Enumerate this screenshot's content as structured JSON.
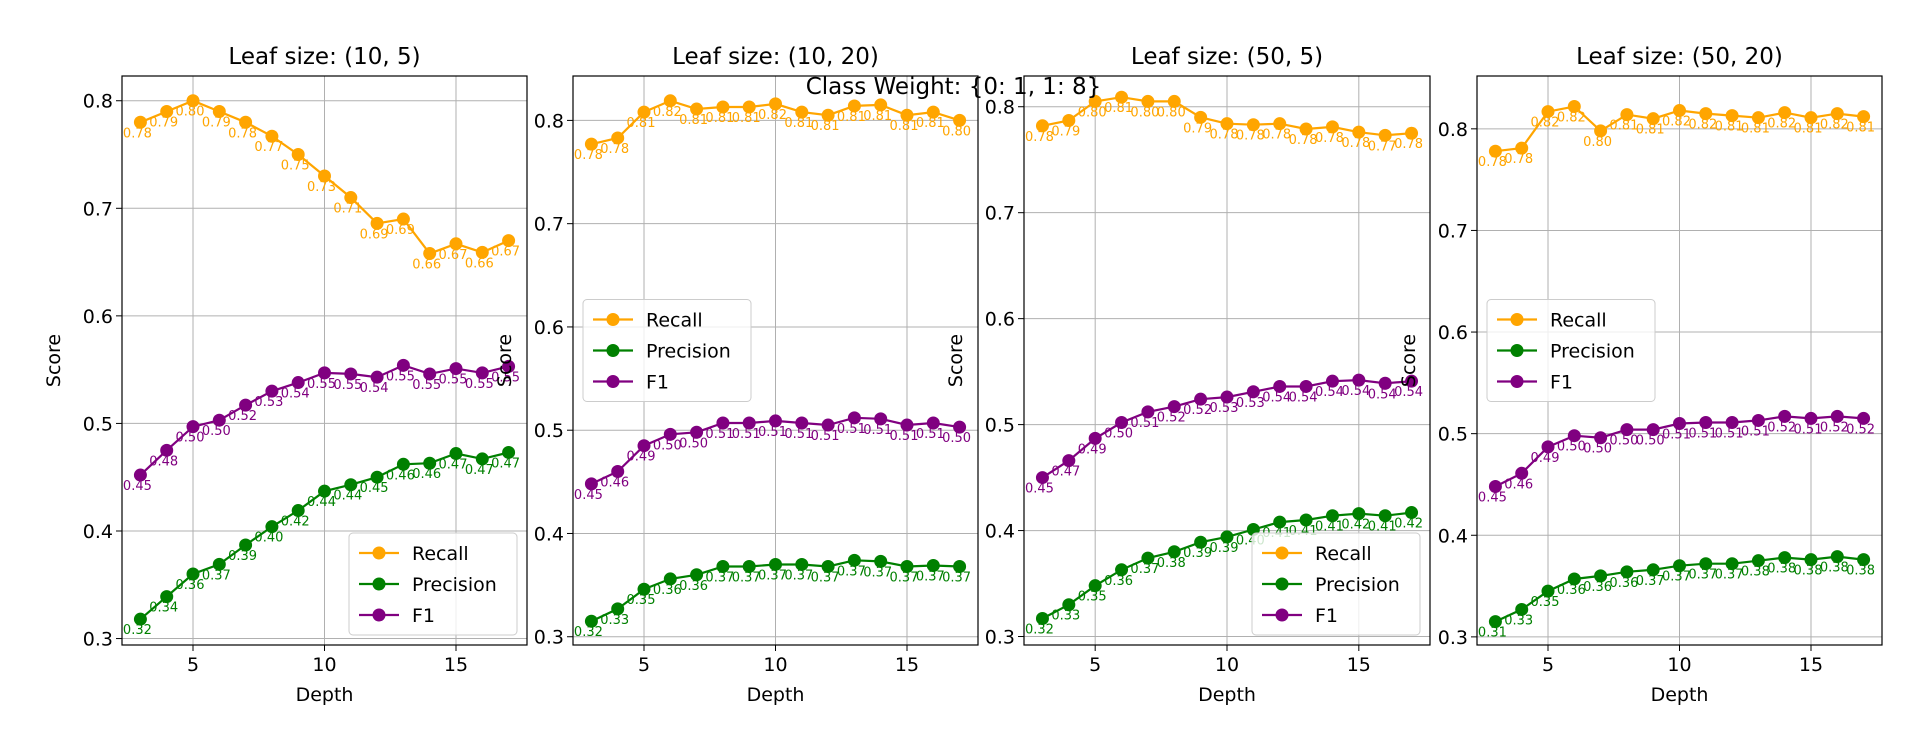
{
  "figure": {
    "suptitle": "Class Weight: {0: 1, 1: 8}",
    "colors": {
      "Recall": "#ffa500",
      "Precision": "#008000",
      "F1": "#800080"
    },
    "legend_entries": [
      "Recall",
      "Precision",
      "F1"
    ]
  },
  "chart_data": [
    {
      "type": "line",
      "title": "Leaf size: (10, 5)",
      "xlabel": "Depth",
      "ylabel": "Score",
      "x": [
        3,
        4,
        5,
        6,
        7,
        8,
        9,
        10,
        11,
        12,
        13,
        14,
        15,
        16,
        17
      ],
      "xticks": [
        5,
        10,
        15
      ],
      "yticks": [
        "0.3",
        "0.4",
        "0.5",
        "0.6",
        "0.7",
        "0.8"
      ],
      "xlim": [
        2.3,
        17.7
      ],
      "ylim": [
        0.294,
        0.823
      ],
      "grid": true,
      "legend_position": "lower right",
      "series": [
        {
          "name": "Recall",
          "values": [
            0.78,
            0.79,
            0.8,
            0.79,
            0.78,
            0.767,
            0.75,
            0.73,
            0.71,
            0.686,
            0.69,
            0.658,
            0.667,
            0.659,
            0.67
          ]
        },
        {
          "name": "Precision",
          "values": [
            0.318,
            0.339,
            0.36,
            0.369,
            0.387,
            0.404,
            0.419,
            0.437,
            0.443,
            0.45,
            0.462,
            0.463,
            0.472,
            0.467,
            0.473
          ]
        },
        {
          "name": "F1",
          "values": [
            0.452,
            0.475,
            0.497,
            0.503,
            0.517,
            0.53,
            0.538,
            0.547,
            0.546,
            0.543,
            0.554,
            0.546,
            0.551,
            0.547,
            0.553
          ]
        }
      ],
      "point_labels": [
        [
          "0.78",
          "0.79",
          "0.80",
          "0.79",
          "0.78",
          "0.77",
          "0.75",
          "0.73",
          "0.71",
          "0.69",
          "0.69",
          "0.66",
          "0.67",
          "0.66",
          "0.67"
        ],
        [
          "0.32",
          "0.34",
          "0.36",
          "0.37",
          "0.39",
          "0.40",
          "0.42",
          "0.44",
          "0.44",
          "0.45",
          "0.46",
          "0.46",
          "0.47",
          "0.47",
          "0.47"
        ],
        [
          "0.45",
          "0.48",
          "0.50",
          "0.50",
          "0.52",
          "0.53",
          "0.54",
          "0.55",
          "0.55",
          "0.54",
          "0.55",
          "0.55",
          "0.55",
          "0.55",
          "0.55"
        ]
      ]
    },
    {
      "type": "line",
      "title": "Leaf size: (10, 20)",
      "xlabel": "Depth",
      "ylabel": "Score",
      "x": [
        3,
        4,
        5,
        6,
        7,
        8,
        9,
        10,
        11,
        12,
        13,
        14,
        15,
        16,
        17
      ],
      "xticks": [
        5,
        10,
        15
      ],
      "yticks": [
        "0.3",
        "0.4",
        "0.5",
        "0.6",
        "0.7",
        "0.8"
      ],
      "xlim": [
        2.3,
        17.7
      ],
      "ylim": [
        0.292,
        0.843
      ],
      "grid": true,
      "legend_position": "center left",
      "series": [
        {
          "name": "Recall",
          "values": [
            0.777,
            0.783,
            0.808,
            0.819,
            0.811,
            0.813,
            0.813,
            0.816,
            0.808,
            0.805,
            0.814,
            0.815,
            0.805,
            0.808,
            0.8
          ]
        },
        {
          "name": "Precision",
          "values": [
            0.315,
            0.327,
            0.346,
            0.356,
            0.36,
            0.368,
            0.368,
            0.37,
            0.37,
            0.368,
            0.374,
            0.373,
            0.368,
            0.369,
            0.368
          ]
        },
        {
          "name": "F1",
          "values": [
            0.448,
            0.46,
            0.485,
            0.496,
            0.498,
            0.507,
            0.507,
            0.509,
            0.507,
            0.505,
            0.512,
            0.511,
            0.505,
            0.507,
            0.503
          ]
        }
      ],
      "point_labels": [
        [
          "0.78",
          "0.78",
          "0.81",
          "0.82",
          "0.81",
          "0.81",
          "0.81",
          "0.82",
          "0.81",
          "0.81",
          "0.81",
          "0.81",
          "0.81",
          "0.81",
          "0.80"
        ],
        [
          "0.32",
          "0.33",
          "0.35",
          "0.36",
          "0.36",
          "0.37",
          "0.37",
          "0.37",
          "0.37",
          "0.37",
          "0.37",
          "0.37",
          "0.37",
          "0.37",
          "0.37"
        ],
        [
          "0.45",
          "0.46",
          "0.49",
          "0.50",
          "0.50",
          "0.51",
          "0.51",
          "0.51",
          "0.51",
          "0.51",
          "0.51",
          "0.51",
          "0.51",
          "0.51",
          "0.50"
        ]
      ]
    },
    {
      "type": "line",
      "title": "Leaf size: (50, 5)",
      "xlabel": "Depth",
      "ylabel": "Score",
      "x": [
        3,
        4,
        5,
        6,
        7,
        8,
        9,
        10,
        11,
        12,
        13,
        14,
        15,
        16,
        17
      ],
      "xticks": [
        5,
        10,
        15
      ],
      "yticks": [
        "0.3",
        "0.4",
        "0.5",
        "0.6",
        "0.7",
        "0.8"
      ],
      "xlim": [
        2.3,
        17.7
      ],
      "ylim": [
        0.292,
        0.829
      ],
      "grid": true,
      "legend_position": "lower right",
      "series": [
        {
          "name": "Recall",
          "values": [
            0.782,
            0.787,
            0.805,
            0.809,
            0.805,
            0.805,
            0.79,
            0.784,
            0.783,
            0.784,
            0.779,
            0.781,
            0.776,
            0.773,
            0.775
          ]
        },
        {
          "name": "Precision",
          "values": [
            0.317,
            0.33,
            0.348,
            0.363,
            0.374,
            0.38,
            0.389,
            0.394,
            0.401,
            0.408,
            0.41,
            0.414,
            0.416,
            0.414,
            0.417
          ]
        },
        {
          "name": "F1",
          "values": [
            0.45,
            0.466,
            0.487,
            0.502,
            0.512,
            0.517,
            0.524,
            0.526,
            0.531,
            0.536,
            0.536,
            0.541,
            0.542,
            0.539,
            0.541
          ]
        }
      ],
      "point_labels": [
        [
          "0.78",
          "0.79",
          "0.80",
          "0.81",
          "0.80",
          "0.80",
          "0.79",
          "0.78",
          "0.78",
          "0.78",
          "0.78",
          "0.78",
          "0.78",
          "0.77",
          "0.78"
        ],
        [
          "0.32",
          "0.33",
          "0.35",
          "0.36",
          "0.37",
          "0.38",
          "0.39",
          "0.39",
          "0.40",
          "0.41",
          "0.41",
          "0.41",
          "0.42",
          "0.41",
          "0.42"
        ],
        [
          "0.45",
          "0.47",
          "0.49",
          "0.50",
          "0.51",
          "0.52",
          "0.52",
          "0.53",
          "0.53",
          "0.54",
          "0.54",
          "0.54",
          "0.54",
          "0.54",
          "0.54"
        ]
      ]
    },
    {
      "type": "line",
      "title": "Leaf size: (50, 20)",
      "xlabel": "Depth",
      "ylabel": "Score",
      "x": [
        3,
        4,
        5,
        6,
        7,
        8,
        9,
        10,
        11,
        12,
        13,
        14,
        15,
        16,
        17
      ],
      "xticks": [
        5,
        10,
        15
      ],
      "yticks": [
        "0.3",
        "0.4",
        "0.5",
        "0.6",
        "0.7",
        "0.8"
      ],
      "xlim": [
        2.3,
        17.7
      ],
      "ylim": [
        0.292,
        0.852
      ],
      "grid": true,
      "legend_position": "center left",
      "series": [
        {
          "name": "Recall",
          "values": [
            0.778,
            0.781,
            0.817,
            0.822,
            0.798,
            0.814,
            0.81,
            0.818,
            0.815,
            0.813,
            0.811,
            0.816,
            0.811,
            0.815,
            0.812
          ]
        },
        {
          "name": "Precision",
          "values": [
            0.315,
            0.327,
            0.345,
            0.357,
            0.36,
            0.364,
            0.366,
            0.37,
            0.372,
            0.372,
            0.375,
            0.378,
            0.376,
            0.379,
            0.376
          ]
        },
        {
          "name": "F1",
          "values": [
            0.448,
            0.461,
            0.487,
            0.498,
            0.496,
            0.504,
            0.504,
            0.51,
            0.511,
            0.511,
            0.513,
            0.517,
            0.515,
            0.517,
            0.515
          ]
        }
      ],
      "point_labels": [
        [
          "0.78",
          "0.78",
          "0.82",
          "0.82",
          "0.80",
          "0.81",
          "0.81",
          "0.82",
          "0.82",
          "0.81",
          "0.81",
          "0.82",
          "0.81",
          "0.82",
          "0.81"
        ],
        [
          "0.31",
          "0.33",
          "0.35",
          "0.36",
          "0.36",
          "0.36",
          "0.37",
          "0.37",
          "0.37",
          "0.37",
          "0.38",
          "0.38",
          "0.38",
          "0.38",
          "0.38"
        ],
        [
          "0.45",
          "0.46",
          "0.49",
          "0.50",
          "0.50",
          "0.50",
          "0.50",
          "0.51",
          "0.51",
          "0.51",
          "0.51",
          "0.52",
          "0.51",
          "0.52",
          "0.52"
        ]
      ]
    }
  ]
}
